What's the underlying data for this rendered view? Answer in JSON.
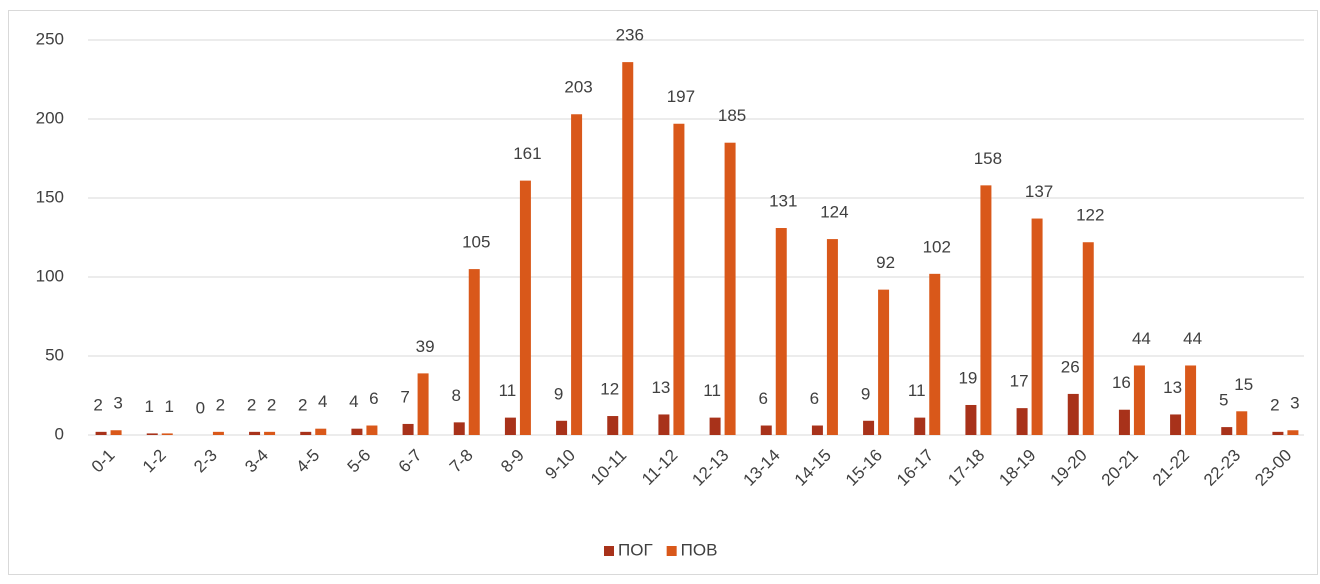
{
  "chart_data": {
    "type": "bar",
    "categories": [
      "0-1",
      "1-2",
      "2-3",
      "3-4",
      "4-5",
      "5-6",
      "6-7",
      "7-8",
      "8-9",
      "9-10",
      "10-11",
      "11-12",
      "12-13",
      "13-14",
      "14-15",
      "15-16",
      "16-17",
      "17-18",
      "18-19",
      "19-20",
      "20-21",
      "21-22",
      "22-23",
      "23-00"
    ],
    "series": [
      {
        "name": "ПОГ",
        "color": "#a8321a",
        "values": [
          2,
          1,
          0,
          2,
          2,
          4,
          7,
          8,
          11,
          9,
          12,
          13,
          11,
          6,
          6,
          9,
          11,
          19,
          17,
          26,
          16,
          13,
          5,
          2
        ]
      },
      {
        "name": "ПОВ",
        "color": "#d9581a",
        "values": [
          3,
          1,
          2,
          2,
          4,
          6,
          39,
          105,
          161,
          203,
          236,
          197,
          185,
          131,
          124,
          92,
          102,
          158,
          137,
          122,
          44,
          44,
          15,
          3
        ]
      }
    ],
    "ylim": [
      0,
      250
    ],
    "yticks": [
      0,
      50,
      100,
      150,
      200,
      250
    ],
    "grid": true,
    "legend": "bottom",
    "data_labels": true
  }
}
